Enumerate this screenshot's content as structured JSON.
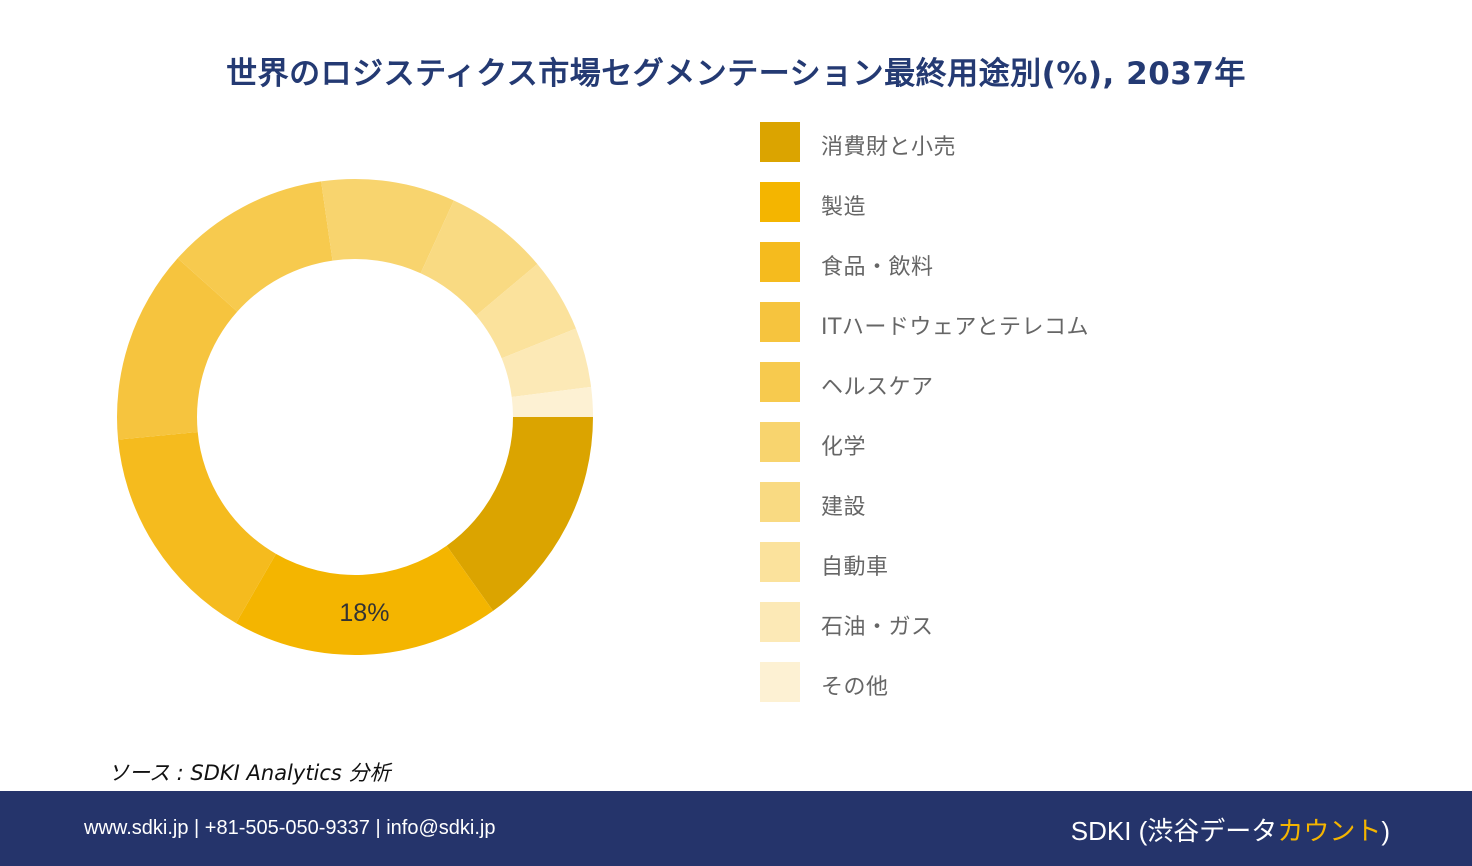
{
  "title": "世界のロジスティクス市場セグメンテーション最終用途別(%), 2037年",
  "chart_data": {
    "type": "pie",
    "donut": true,
    "title": "世界のロジスティクス市場セグメンテーション最終用途別(%), 2037年",
    "unit": "%",
    "legend_position": "right",
    "slices": [
      {
        "label": "消費財と小売",
        "value": 15,
        "color": "#dba400"
      },
      {
        "label": "製造",
        "value": 18,
        "color": "#f4b500",
        "data_label": "18%"
      },
      {
        "label": "食品・飲料",
        "value": 15,
        "color": "#f5bb1e"
      },
      {
        "label": "ITハードウェアとテレコム",
        "value": 13,
        "color": "#f6c43e"
      },
      {
        "label": "ヘルスケア",
        "value": 11,
        "color": "#f7ca4e"
      },
      {
        "label": "化学",
        "value": 9,
        "color": "#f8d46e"
      },
      {
        "label": "建設",
        "value": 7,
        "color": "#f9da82"
      },
      {
        "label": "自動車",
        "value": 5,
        "color": "#fbe29c"
      },
      {
        "label": "石油・ガス",
        "value": 4,
        "color": "#fce9b6"
      },
      {
        "label": "その他",
        "value": 2,
        "color": "#fdf1d3"
      }
    ]
  },
  "source": "ソース : SDKI Analytics 分析",
  "footer": {
    "contact": "www.sdki.jp | +81-505-050-9337 | info@sdki.jp",
    "brand_prefix": "SDKI (渋谷データ",
    "brand_accent": "カウント",
    "brand_suffix": ")"
  }
}
